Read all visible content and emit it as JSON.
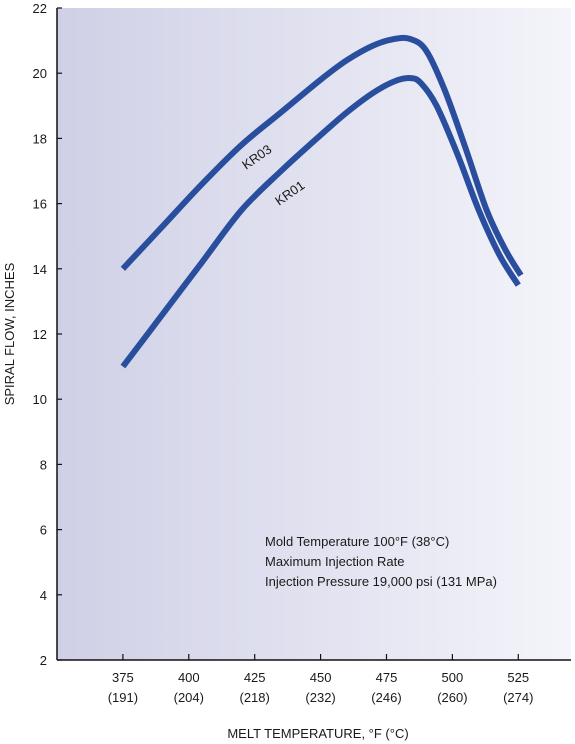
{
  "chart_data": {
    "type": "line",
    "title": "",
    "xlabel": "MELT TEMPERATURE, °F (°C)",
    "ylabel": "SPIRAL FLOW, INCHES",
    "xlim": [
      350,
      545
    ],
    "ylim": [
      2,
      22
    ],
    "yticks": [
      2,
      4,
      6,
      8,
      10,
      12,
      14,
      16,
      18,
      20,
      22
    ],
    "xticks": [
      375,
      400,
      425,
      450,
      475,
      500,
      525
    ],
    "xtick_labels": [
      "375",
      "400",
      "425",
      "450",
      "475",
      "500",
      "525"
    ],
    "xtick_sublabels": [
      "(191)",
      "(204)",
      "(218)",
      "(232)",
      "(246)",
      "(260)",
      "(274)"
    ],
    "grid": false,
    "line_color": "#2a4e9e",
    "background": "light blue-gray gradient",
    "series": [
      {
        "name": "KR03",
        "x": [
          375,
          390,
          405,
          420,
          435,
          450,
          460,
          470,
          478,
          484,
          490,
          497,
          505,
          513,
          520,
          526
        ],
        "y": [
          14.0,
          15.3,
          16.6,
          17.8,
          18.8,
          19.8,
          20.4,
          20.85,
          21.05,
          21.05,
          20.7,
          19.5,
          17.7,
          15.8,
          14.6,
          13.8
        ]
      },
      {
        "name": "KR01",
        "x": [
          375,
          390,
          405,
          420,
          435,
          450,
          460,
          470,
          478,
          484,
          488,
          494,
          502,
          510,
          518,
          525
        ],
        "y": [
          11.0,
          12.6,
          14.2,
          15.8,
          17.0,
          18.1,
          18.8,
          19.4,
          19.75,
          19.85,
          19.7,
          19.0,
          17.5,
          15.8,
          14.4,
          13.5
        ]
      }
    ],
    "annotations": [
      "Mold Temperature 100°F (38°C)",
      "Maximum Injection Rate",
      "Injection Pressure 19,000 psi (131 MPa)"
    ]
  }
}
